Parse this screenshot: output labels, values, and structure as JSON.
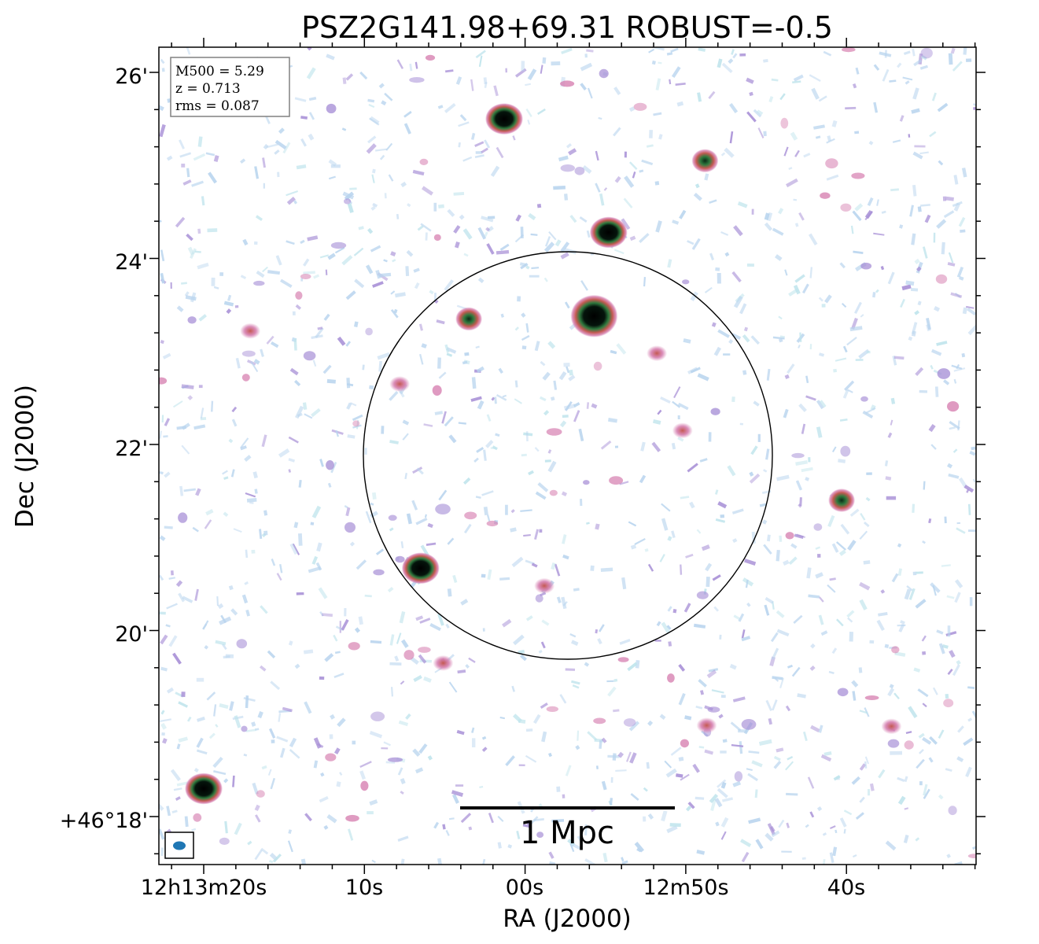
{
  "chart_data": {
    "type": "heatmap",
    "title": "PSZ2G141.98+69.31 ROBUST=-0.5",
    "xlabel": "RA (J2000)",
    "ylabel": "Dec (J2000)",
    "x_tick_labels": [
      "12h13m20s",
      "10s",
      "00s",
      "12m50s",
      "40s"
    ],
    "y_tick_labels": [
      "+46°18'",
      "20'",
      "22'",
      "24'",
      "26'"
    ],
    "info_box": [
      "M500 = 5.29",
      "z = 0.713",
      "rms = 0.087"
    ],
    "scale_bar_label": "1 Mpc",
    "colormap": "cubehelix_r",
    "colors": {
      "noise_light": "#b8d4ee",
      "noise_cyan": "#bfe4ec",
      "noise_purple": "#a78fd6",
      "emission_pink": "#d67fb0",
      "emission_red": "#c45a52",
      "emission_green": "#2f7a3e",
      "core": "#000000",
      "beam": "#1f77b4"
    },
    "sources": [
      {
        "ra": "12h13m01.3s",
        "dec": "+46°25.50'",
        "strength": "strong"
      },
      {
        "ra": "12h12m48.8s",
        "dec": "+46°25.05'",
        "strength": "medium"
      },
      {
        "ra": "12h12m54.8s",
        "dec": "+46°24.28'",
        "strength": "strong"
      },
      {
        "ra": "12h12m55.7s",
        "dec": "+46°23.38'",
        "strength": "very strong"
      },
      {
        "ra": "12h13m03.5s",
        "dec": "+46°23.35'",
        "strength": "medium"
      },
      {
        "ra": "12h13m06.5s",
        "dec": "+46°20.67'",
        "strength": "strong"
      },
      {
        "ra": "12h12m40.3s",
        "dec": "+46°21.40'",
        "strength": "medium"
      },
      {
        "ra": "12h13m20.0s",
        "dec": "+46°18.30'",
        "strength": "strong"
      },
      {
        "ra": "12h13m17.1s",
        "dec": "+46°23.22'",
        "strength": "weak"
      },
      {
        "ra": "12h13m05.1s",
        "dec": "+46°19.65'",
        "strength": "weak"
      },
      {
        "ra": "12h12m37.2s",
        "dec": "+46°18.97'",
        "strength": "weak"
      },
      {
        "ra": "12h12m48.7s",
        "dec": "+46°18.98'",
        "strength": "weak"
      },
      {
        "ra": "12h12m51.8s",
        "dec": "+46°22.98'",
        "strength": "weak"
      },
      {
        "ra": "12h12m50.2s",
        "dec": "+46°22.15'",
        "strength": "weak"
      },
      {
        "ra": "12h13m07.8s",
        "dec": "+46°22.65'",
        "strength": "weak"
      },
      {
        "ra": "12h12m58.8s",
        "dec": "+46°20.48'",
        "strength": "weak"
      }
    ],
    "circle": {
      "center_ra": "12h12m57.4s",
      "center_dec": "+46°21.90'",
      "radius_arcmin": 2.2
    }
  }
}
